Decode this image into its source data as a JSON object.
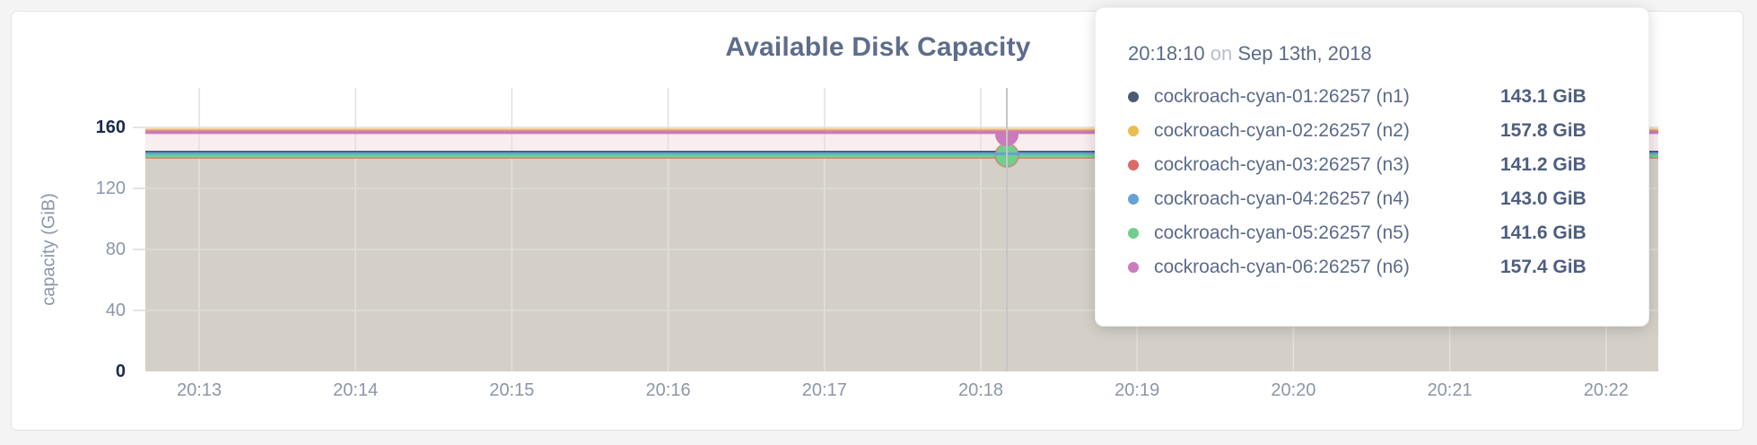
{
  "colors": {
    "page_bg": "#f4f4f5",
    "card_bg": "#ffffff",
    "card_border": "#e4e4e4",
    "title_text": "#5d6d8b",
    "tick_text": "#8c96a8",
    "tick_text_emph": "#1b2b4e",
    "band_upper": "#f8eef0",
    "band_lower": "#d4d0c8",
    "grid_vertical": "#e3e0da",
    "grid_horizontal": "#dfdcd6",
    "hover_line": "#c5c5c5"
  },
  "chart_data": {
    "type": "area",
    "title": "Available Disk Capacity",
    "ylabel": "capacity (GiB)",
    "unit": "GiB",
    "x_ticks": [
      "20:13",
      "20:14",
      "20:15",
      "20:16",
      "20:17",
      "20:18",
      "20:19",
      "20:20",
      "20:21",
      "20:22"
    ],
    "y_ticks": [
      0,
      40,
      80,
      120,
      160
    ],
    "ylim": [
      0,
      187
    ],
    "grid": true,
    "legend_position": "tooltip-only",
    "series": [
      {
        "name": "cockroach-cyan-01:26257 (n1)",
        "node": "n1",
        "value": 143.1,
        "color": "#4a5b78"
      },
      {
        "name": "cockroach-cyan-02:26257 (n2)",
        "node": "n2",
        "value": 157.8,
        "color": "#ecbc4e"
      },
      {
        "name": "cockroach-cyan-03:26257 (n3)",
        "node": "n3",
        "value": 141.2,
        "color": "#dc6a66"
      },
      {
        "name": "cockroach-cyan-04:26257 (n4)",
        "node": "n4",
        "value": 143.0,
        "color": "#65a1d7"
      },
      {
        "name": "cockroach-cyan-05:26257 (n5)",
        "node": "n5",
        "value": 141.6,
        "color": "#72ce8e"
      },
      {
        "name": "cockroach-cyan-06:26257 (n6)",
        "node": "n6",
        "value": 157.4,
        "color": "#ca7abd"
      }
    ],
    "hover": {
      "time": "20:18:10",
      "date": "Sep 13th, 2018",
      "x_tick_ref": "20:18",
      "seconds_past_tick": 10
    }
  },
  "tooltip": {
    "time": "20:18:10",
    "on_word": "on",
    "date": "Sep 13th, 2018",
    "rows": [
      {
        "label": "cockroach-cyan-01:26257 (n1)",
        "value": "143.1 GiB",
        "color": "#4a5b78"
      },
      {
        "label": "cockroach-cyan-02:26257 (n2)",
        "value": "157.8 GiB",
        "color": "#ecbc4e"
      },
      {
        "label": "cockroach-cyan-03:26257 (n3)",
        "value": "141.2 GiB",
        "color": "#dc6a66"
      },
      {
        "label": "cockroach-cyan-04:26257 (n4)",
        "value": "143.0 GiB",
        "color": "#65a1d7"
      },
      {
        "label": "cockroach-cyan-05:26257 (n5)",
        "value": "141.6 GiB",
        "color": "#72ce8e"
      },
      {
        "label": "cockroach-cyan-06:26257 (n6)",
        "value": "157.4 GiB",
        "color": "#ca7abd"
      }
    ]
  }
}
